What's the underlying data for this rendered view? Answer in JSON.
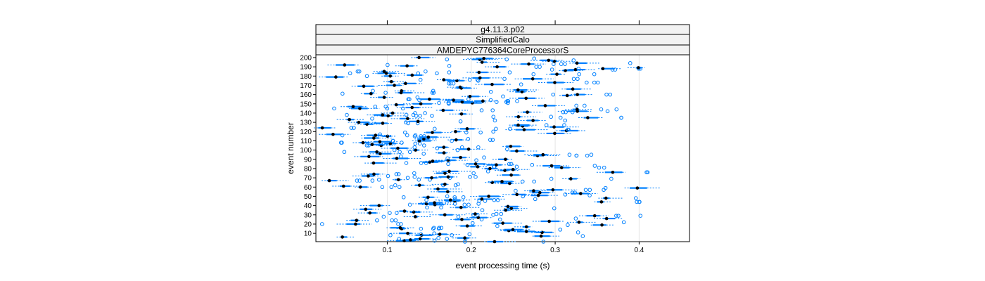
{
  "chart_data": {
    "type": "box",
    "strips": [
      "g4.11.3.p02",
      "SimplifiedCalo",
      "AMDEPYC776364CoreProcessorS"
    ],
    "xlabel": "event processing time (s)",
    "ylabel": "event number",
    "xlim": [
      0.015,
      0.46
    ],
    "ylim": [
      1,
      203
    ],
    "x_ticks": [
      "0.1",
      "0.2",
      "0.3",
      "0.4"
    ],
    "y_ticks": [
      "10",
      "20",
      "30",
      "40",
      "50",
      "60",
      "70",
      "80",
      "90",
      "100",
      "110",
      "120",
      "130",
      "140",
      "150",
      "160",
      "170",
      "180",
      "190",
      "200"
    ],
    "y_values": [
      10,
      20,
      30,
      40,
      50,
      60,
      70,
      80,
      90,
      100,
      110,
      120,
      130,
      140,
      150,
      160,
      170,
      180,
      190,
      200
    ],
    "grid": true,
    "colors": {
      "box": "#0080ff",
      "median": "#000000",
      "outlier": "#0080ff"
    }
  }
}
